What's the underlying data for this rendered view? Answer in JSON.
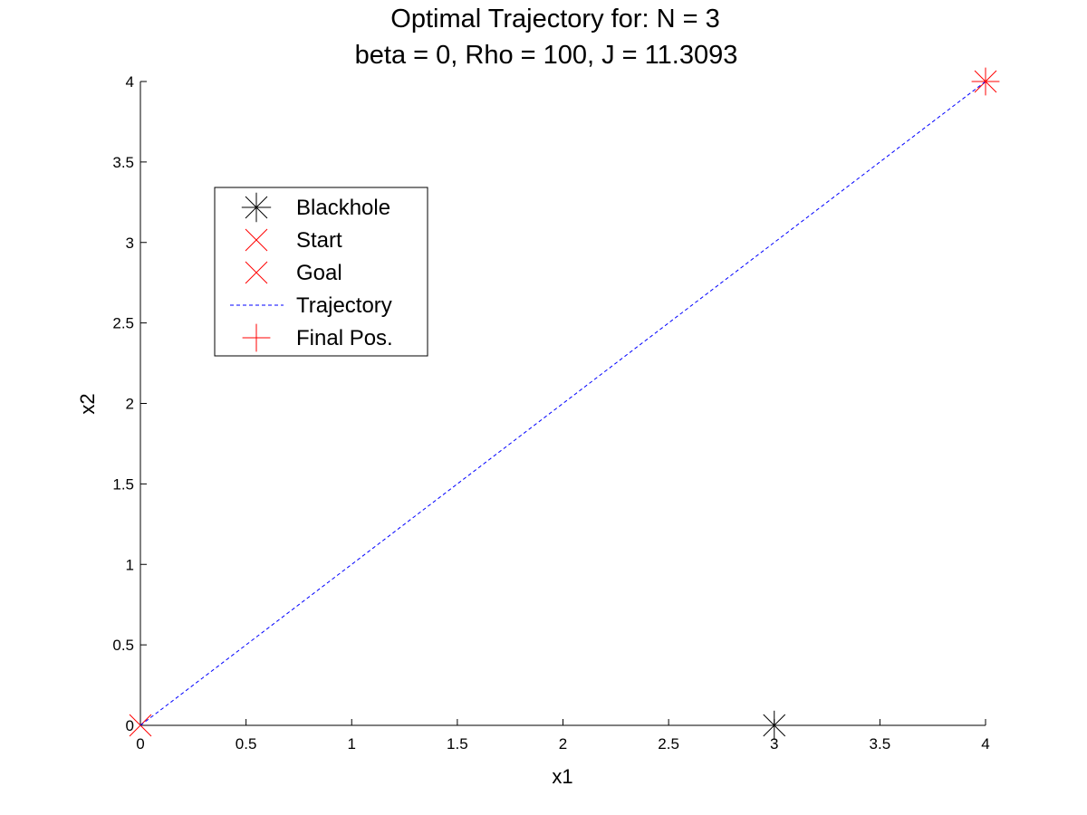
{
  "chart_data": {
    "type": "scatter",
    "title_lines": [
      "Optimal Trajectory for:  N = 3",
      "beta = 0, Rho = 100, J = 11.3093"
    ],
    "xlabel": "x1",
    "ylabel": "x2",
    "xlim": [
      0,
      4
    ],
    "ylim": [
      0,
      4
    ],
    "x_ticks": [
      0,
      0.5,
      1,
      1.5,
      2,
      2.5,
      3,
      3.5,
      4
    ],
    "x_tick_labels": [
      "0",
      "0.5",
      "1",
      "1.5",
      "2",
      "2.5",
      "3",
      "3.5",
      "4"
    ],
    "y_ticks": [
      0,
      0.5,
      1,
      1.5,
      2,
      2.5,
      3,
      3.5,
      4
    ],
    "y_tick_labels": [
      "0",
      "0.5",
      "1",
      "1.5",
      "2",
      "2.5",
      "3",
      "3.5",
      "4"
    ],
    "grid": false,
    "legend_position": "upper-left",
    "series": [
      {
        "name": "Blackhole",
        "marker": "asterisk",
        "color": "#000000",
        "points": [
          [
            3,
            0
          ]
        ]
      },
      {
        "name": "Start",
        "marker": "x",
        "color": "#ff0000",
        "points": [
          [
            0,
            0
          ]
        ]
      },
      {
        "name": "Goal",
        "marker": "x",
        "color": "#ff0000",
        "points": [
          [
            4,
            4
          ]
        ]
      },
      {
        "name": "Trajectory",
        "marker": "dashed-line",
        "color": "#0000ff",
        "points": [
          [
            0,
            0
          ],
          [
            1,
            1
          ],
          [
            2,
            2
          ],
          [
            3,
            3
          ],
          [
            4,
            4
          ]
        ]
      },
      {
        "name": "Final Pos.",
        "marker": "plus",
        "color": "#ff0000",
        "points": [
          [
            4,
            4
          ]
        ]
      }
    ]
  }
}
